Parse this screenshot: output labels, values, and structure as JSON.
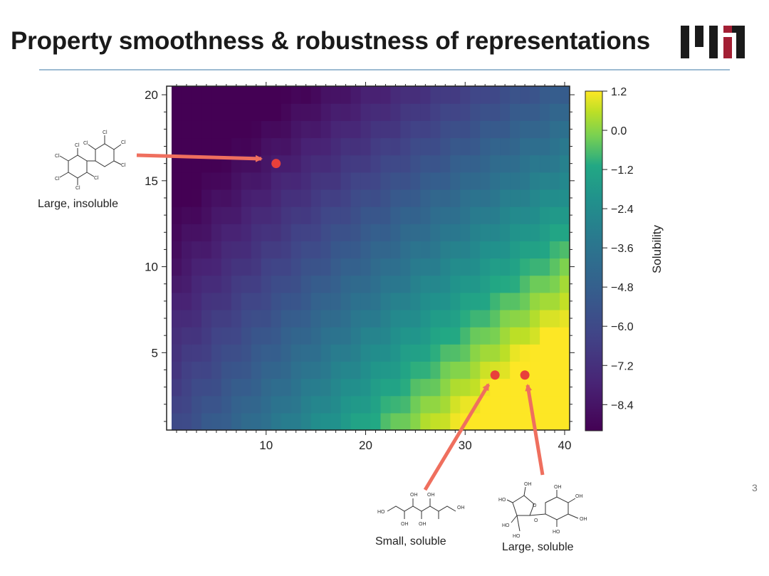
{
  "slide": {
    "title": "Property smoothness & robustness of representations",
    "page_number": "3",
    "logo_text": "MIT",
    "colors": {
      "rule": "#9dbbd2",
      "marker": "#e8403b",
      "arrow": "#ef6f5e"
    }
  },
  "annotations": {
    "large_insoluble": {
      "label": "Large, insoluble",
      "structure": "chlorinated biphenyl (Cl substituents)"
    },
    "small_soluble": {
      "label": "Small, soluble",
      "structure": "sugar alcohol chain (OH groups)"
    },
    "large_soluble": {
      "label": "Large, soluble",
      "structure": "disaccharide (two rings, OH groups)"
    }
  },
  "chart_data": {
    "type": "heatmap",
    "xlim": [
      0,
      40.5
    ],
    "ylim": [
      0.5,
      20.5
    ],
    "x_ticks": [
      10,
      20,
      30,
      40
    ],
    "y_ticks": [
      5,
      10,
      15,
      20
    ],
    "xlabel": "",
    "ylabel": "",
    "colorbar": {
      "label": "Solubility",
      "range": [
        -9.2,
        1.2
      ],
      "ticks": [
        "1.2",
        "0.0",
        "−1.2",
        "−2.4",
        "−3.6",
        "−4.8",
        "−6.0",
        "−7.2",
        "−8.4"
      ],
      "colormap": "viridis"
    },
    "surface_description": "Solubility increases toward large x and small y; lowest (~-9) at top-left, highest (~1.2) at bottom-right.",
    "points": [
      {
        "x": 11,
        "y": 16,
        "label": "Large, insoluble"
      },
      {
        "x": 33,
        "y": 3.7,
        "label": "Small, soluble"
      },
      {
        "x": 36,
        "y": 3.7,
        "label": "Large, soluble"
      }
    ]
  }
}
